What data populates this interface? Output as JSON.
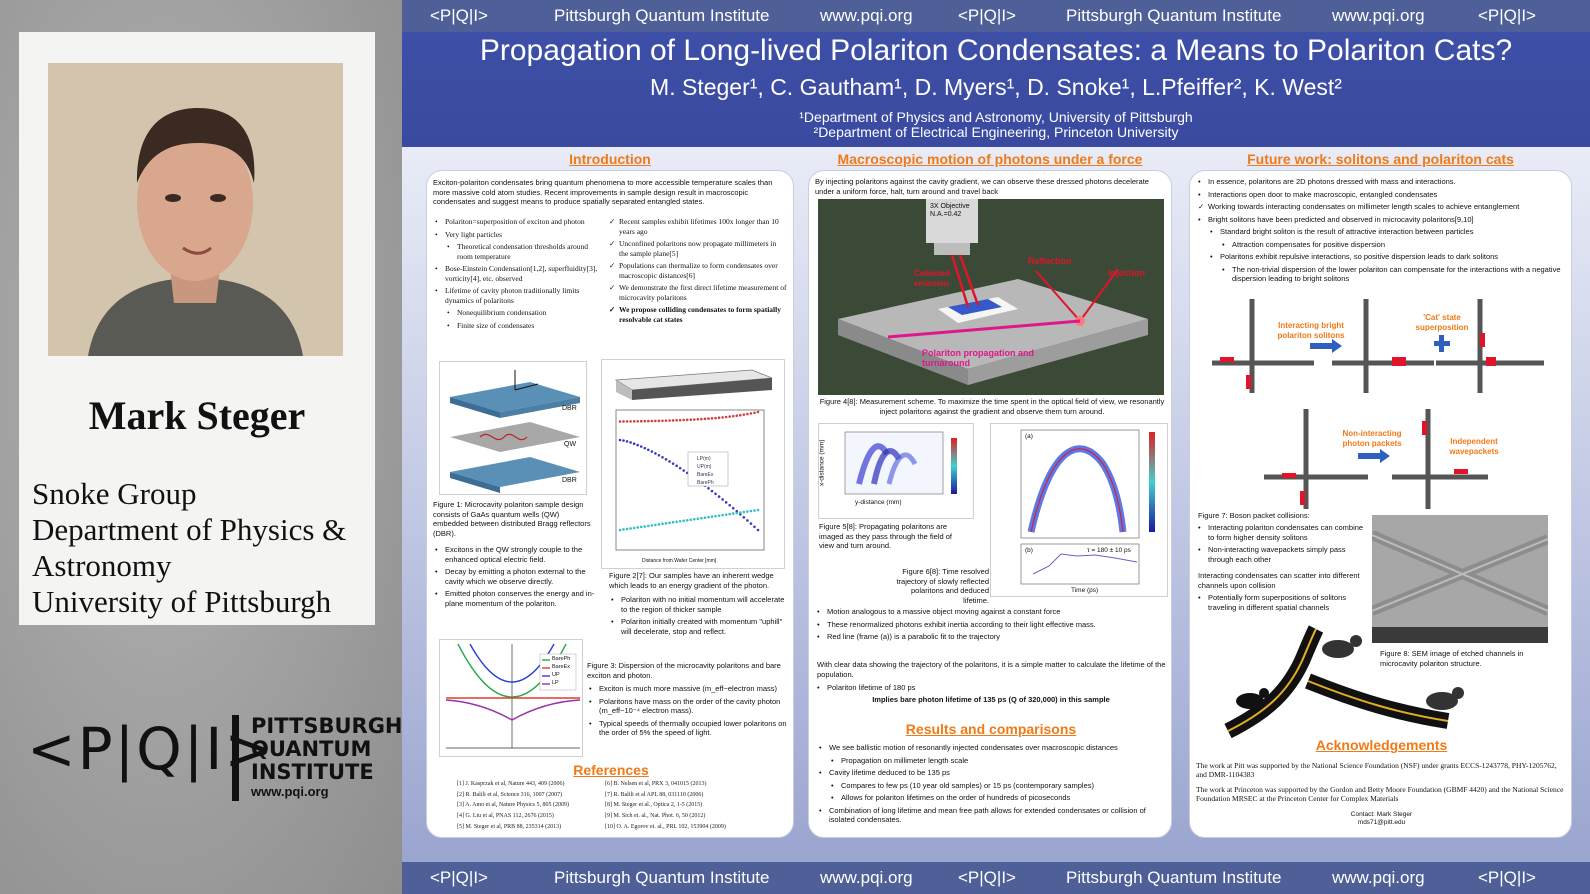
{
  "presenter": {
    "name": "Mark Steger",
    "affiliation_lines": [
      "Snoke Group",
      "Department of Physics &",
      "Astronomy",
      "University of Pittsburgh"
    ],
    "logo_glyph": "<P|Q|I>",
    "logo_lines": [
      "PITTSBURGH",
      "QUANTUM",
      "INSTITUTE"
    ],
    "logo_url": "www.pqi.org"
  },
  "header_bar": {
    "logo": "<P|Q|I>",
    "institute": "Pittsburgh Quantum Institute",
    "url": "www.pqi.org"
  },
  "poster": {
    "title": "Propagation of Long-lived Polariton Condensates: a Means to Polariton Cats?",
    "authors": "M. Steger¹, C. Gautham¹, D. Myers¹, D. Snoke¹, L.Pfeiffer², K. West²",
    "affiliation1": "¹Department of Physics and Astronomy, University of Pittsburgh",
    "affiliation2": "²Department of Electrical Engineering, Princeton University"
  },
  "introduction": {
    "title": "Introduction",
    "lead": "Exciton-polariton condensates bring quantum phenomena to more accessible temperature scales than more massive cold atom studies.  Recent improvements in sample design result in macroscopic condensates and suggest means to produce spatially separated entangled states.",
    "left_bullets": [
      "Polariton=superposition of exciton and photon",
      "Very light particles",
      "Theoretical condensation thresholds around room temperature",
      "Bose-Einstein Condensation[1,2], superfluidity[3], vorticity[4], etc. observed",
      "Lifetime of cavity photon traditionally limits dynamics of polaritons",
      "Nonequilibrium condensation",
      "Finite size of condensates"
    ],
    "right_checks": [
      "Recent samples exhibit lifetimes 100x longer than 10 years ago",
      "Unconfined polaritons now propagate millimeters in the sample plane[5]",
      "Populations can thermalize to form condensates over macroscopic distances[6]",
      "We demonstrate the first direct lifetime measurement of microcavity polaritons",
      "We propose colliding condensates to form spatially resolvable cat states"
    ],
    "fig1_labels": [
      "DBR",
      "QW",
      "DBR"
    ],
    "fig1_caption": "Figure 1: Microcavity polariton sample design consists of GaAs quantum wells (QW) embedded between distributed Bragg reflectors (DBR).",
    "fig1_bullets": [
      "Excitons in the QW strongly couple to the enhanced optical electric field.",
      "Decay by emitting a photon external to the cavity which we observe directly.",
      "Emitted photon conserves the energy and in-plane momentum of the polariton."
    ],
    "fig2_caption": "Figure 2[7]: Our samples have an inherent wedge which leads to an energy gradient of the photon.",
    "fig2_bullets": [
      "Polariton with no initial momentum will accelerate to the region of thicker sample",
      "Polariton initially created with momentum \"uphill\" will decelerate, stop and reflect."
    ],
    "fig2_xlabel": "Distance from Wafer Center [mm]",
    "fig2_legend": [
      "LP(m)",
      "UP(m)",
      "BareEx",
      "BarePh"
    ],
    "fig3_legend": [
      "BarePh",
      "BareEx",
      "UP",
      "LP"
    ],
    "fig3_caption": "Figure 3: Dispersion of the microcavity polaritons and bare exciton and photon.",
    "fig3_bullets": [
      "Exciton is much more massive (m_eff~electron mass)",
      "Polaritons have mass on the order of the cavity photon (m_eff~10⁻⁴ electron mass).",
      "Typical speeds of thermally occupied lower polaritons on the order of 5% the speed of light."
    ]
  },
  "references": {
    "title": "References",
    "left": [
      "[1] J. Kasprzak et al, Nature 443, 409 (2006)",
      "[2] R. Balili et al, Science 316, 1007 (2007)",
      "[3] A. Amo et al, Nature Physics 5, 805 (2009)",
      "[4] G. Liu et al, PNAS 112, 2676 (2015)",
      "[5] M. Steger et al, PRB 88, 235314 (2013)"
    ],
    "right": [
      "[6] B. Nelsen et al, PRX 3, 041015 (2013)",
      "[7] R. Balili et al APL 88, 031110 (2006)",
      "[8] M. Steger et al., Optica 2, 1-5 (2015)",
      "[9] M. Sich et. al., Nat. Phot. 6, 50 (2012)",
      "[10] O. A. Egorov et. al., PRL 102, 153904 (2009)"
    ]
  },
  "macroscopic": {
    "title": "Macroscopic motion of photons under a force",
    "lead": "By injecting polaritons against the cavity gradient, we can observe these dressed photons decelerate under a uniform force, halt, turn around and travel back",
    "fig4_labels": [
      "3X Objective N.A.=0.42",
      "Collected emission",
      "Reflection",
      "Injection",
      "Polariton propagation and turnaround"
    ],
    "fig4_caption": "Figure 4[8]: Measurement scheme.  To maximize the time spent in the optical field of view, we resonantly inject polaritons against the gradient and observe them turn around.",
    "fig5_caption": "Figure 5[8]: Propagating polaritons are imaged as they pass through the field of view and turn around.",
    "fig5_xlabel": "y-distance (mm)",
    "fig5_ylabel": "x-distance (mm)",
    "fig6_caption": "Figure 6[8]: Time resolved trajectory of slowly reflected polaritons and deduced lifetime.",
    "fig6_xlabel": "Time (ps)",
    "fig6_tau": "τ = 180 ± 10 ps",
    "fig6_panels": [
      "(a)",
      "(b)"
    ],
    "bullets": [
      "Motion analogous to a massive object moving against a constant force",
      "These renormalized photons exhibit inertia according to their light effective mass.",
      "Red line (frame (a)) is a parabolic fit to the trajectory"
    ],
    "para": "With clear data showing the trajectory of the polaritons, it is a simple matter to calculate the lifetime of the population.",
    "lifetime_bullet": "Polariton lifetime of 180 ps",
    "implies": "Implies bare photon lifetime of  135 ps (Q of 320,000) in this sample"
  },
  "results": {
    "title": "Results and comparisons",
    "bullets": [
      "We see ballistic motion of resonantly injected condensates over macroscopic distances",
      "Propagation on millimeter length scale",
      "Cavity lifetime deduced to be 135 ps",
      "Compares to few ps (10 year old samples) or 15 ps (contemporary samples)",
      "Allows for polariton lifetimes on the order of hundreds of picoseconds",
      "Combination of long lifetime and mean free path allows for extended condensates or collision of isolated condensates."
    ]
  },
  "future": {
    "title": "Future work: solitons and polariton cats",
    "bullets": [
      "In essence, polaritons are 2D photons dressed with mass and interactions.",
      "Interactions open door to make macroscopic, entangled condensates",
      "Working towards interacting condensates on millimeter length scales to achieve entanglement",
      "Bright solitons have been predicted and observed in microcavity polaritons[9,10]",
      "Standard bright soliton is the result of attractive interaction between particles",
      "Attraction compensates for positive dispersion",
      "Polaritons exhibit repulsive interactions, so positive dispersion leads to dark solitons",
      "The non-trivial dispersion of the lower polariton can compensate for the interactions with a negative dispersion leading to bright solitons"
    ],
    "diagram_labels": [
      "Interacting bright polariton solitons",
      "'Cat' state superposition",
      "Non-interacting photon packets",
      "Independent wavepackets"
    ],
    "fig7_caption": "Figure 7: Boson packet collisions:",
    "fig7_bullets": [
      "Interacting polariton condensates can combine to form higher density solitons",
      "Non-interacting wavepackets simply pass through each other"
    ],
    "fig7_para": "Interacting condensates can scatter into different channels upon collision",
    "fig7_sub": "Potentially form superpositions of solitons traveling in different spatial channels",
    "fig8_caption": "Figure 8: SEM image of etched channels in microcavity polariton structure."
  },
  "acknowledgements": {
    "title": "Acknowledgements",
    "pitt": "The work at Pitt was supported by the National Science Foundation (NSF) under grants ECCS-1243778, PHY-1205762, and DMR-1104383",
    "princeton": "The work at Princeton was supported by the Gordon and Betty Moore Foundation (GBMF 4420) and the National Science Foundation MRSEC at the Princeton Center for Complex Materials",
    "contact": "Contact: Mark Steger",
    "email": "mds71@pitt.edu"
  },
  "colors": {
    "banner": "#3d4fa6",
    "bar": "#4f5f98",
    "section_title": "#f07a18",
    "accent_red": "#e02030"
  }
}
